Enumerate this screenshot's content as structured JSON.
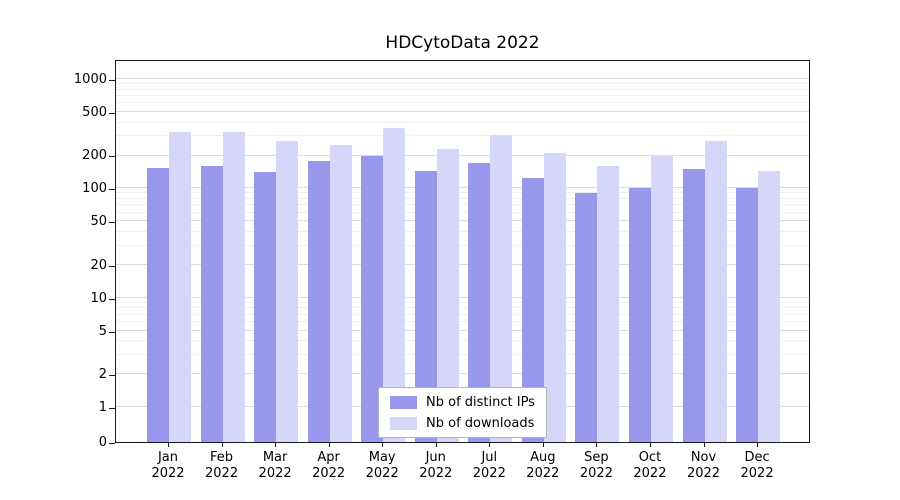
{
  "title": "HDCytoData 2022",
  "chart_data": {
    "type": "bar",
    "title": "HDCytoData 2022",
    "yscale": "log",
    "grid": true,
    "legend_position": "inside-bottom-center",
    "ylim": [
      0,
      1500
    ],
    "y_ticks": [
      0,
      1,
      2,
      5,
      10,
      20,
      50,
      100,
      200,
      500,
      1000
    ],
    "categories": [
      "Jan",
      "Feb",
      "Mar",
      "Apr",
      "May",
      "Jun",
      "Jul",
      "Aug",
      "Sep",
      "Oct",
      "Nov",
      "Dec"
    ],
    "x_year_label": "2022",
    "series": [
      {
        "name": "Nb of distinct IPs",
        "color": "#9797ec",
        "values": [
          155,
          160,
          140,
          180,
          200,
          145,
          170,
          125,
          90,
          100,
          150,
          100
        ]
      },
      {
        "name": "Nb of downloads",
        "color": "#d6d6f8",
        "values": [
          330,
          330,
          270,
          250,
          360,
          230,
          310,
          210,
          160,
          200,
          270,
          145
        ]
      }
    ]
  }
}
